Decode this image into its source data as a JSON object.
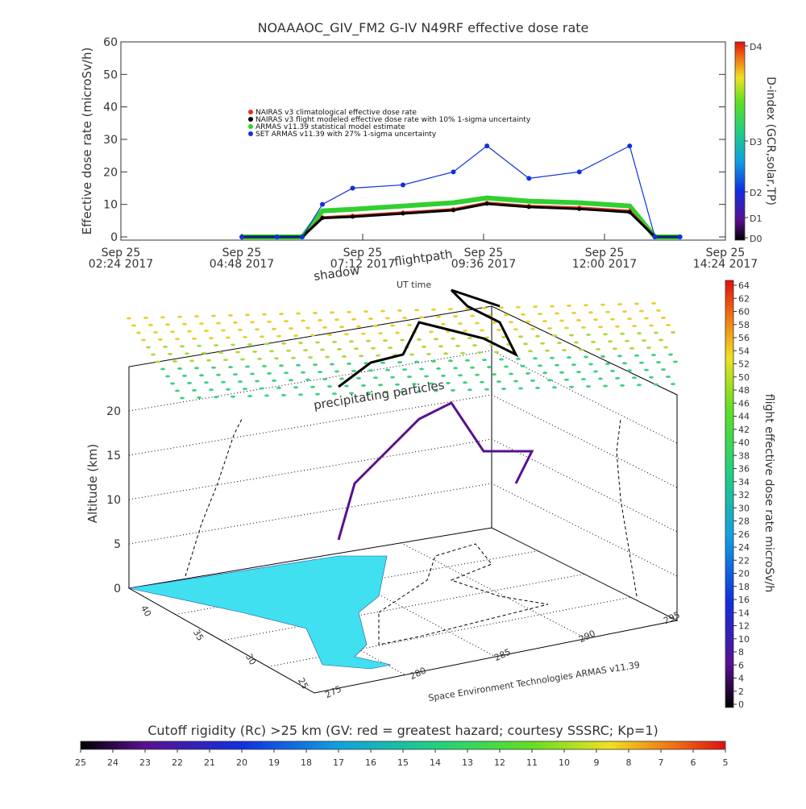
{
  "top_chart": {
    "title": "NOAAAOC_GIV_FM2 G-IV    N49RF  effective dose rate",
    "ylabel": "Effective dose rate (microSv/h)",
    "yticks": [
      "0",
      "10",
      "20",
      "30",
      "40",
      "50",
      "60"
    ],
    "xticks": [
      {
        "date": "Sep 25",
        "time": "02:24 2017"
      },
      {
        "date": "Sep 25",
        "time": "04:48 2017"
      },
      {
        "date": "Sep 25",
        "time": "07:12 2017"
      },
      {
        "date": "Sep 25",
        "time": "09:36 2017"
      },
      {
        "date": "Sep 25",
        "time": "12:00 2017"
      },
      {
        "date": "Sep 25",
        "time": "14:24 2017"
      }
    ],
    "legend": [
      {
        "label": "NAIRAS v3 climatological effective dose rate",
        "color": "#e03020"
      },
      {
        "label": "NAIRAS v3 flight modeled effective dose rate with 10% 1-sigma uncertainty",
        "color": "#000000"
      },
      {
        "label": "ARMAS v11.39 statistical model estimate",
        "color": "#30d030"
      },
      {
        "label": "SET ARMAS v11.39 with 27% 1-sigma uncertainty",
        "color": "#1030e0"
      }
    ],
    "dindex": {
      "label": "D-index (GCR,solar,TP)",
      "ticks": [
        "D4",
        "D3",
        "D2",
        "D1",
        "D0"
      ]
    }
  },
  "chart_data": [
    {
      "type": "line",
      "title": "NOAAAOC_GIV_FM2 G-IV    N49RF  effective dose rate",
      "ylabel": "Effective dose rate (microSv/h)",
      "xlabel": "",
      "ylim": [
        0,
        60
      ],
      "xlim": [
        "2017-09-25 02:24",
        "2017-09-25 14:24"
      ],
      "x": [
        "2017-09-25 04:48",
        "2017-09-25 05:30",
        "2017-09-25 06:00",
        "2017-09-25 06:24",
        "2017-09-25 07:00",
        "2017-09-25 08:00",
        "2017-09-25 09:00",
        "2017-09-25 09:40",
        "2017-09-25 10:30",
        "2017-09-25 11:30",
        "2017-09-25 12:30",
        "2017-09-25 13:00",
        "2017-09-25 13:30"
      ],
      "series": [
        {
          "name": "NAIRAS v3 climatological effective dose rate",
          "color": "#e03020",
          "values": [
            0,
            0,
            0,
            6,
            6.5,
            7.5,
            8.5,
            10.5,
            9.5,
            9,
            8,
            0,
            0
          ]
        },
        {
          "name": "NAIRAS v3 flight modeled effective dose rate with 10% 1-sigma uncertainty",
          "color": "#000000",
          "values": [
            0,
            0,
            0,
            5.8,
            6.2,
            7.2,
            8.2,
            10.2,
            9.2,
            8.6,
            7.6,
            0,
            0
          ]
        },
        {
          "name": "ARMAS v11.39 statistical model estimate",
          "color": "#30d030",
          "values": [
            0,
            0,
            0,
            8,
            8.5,
            9.5,
            10.5,
            12,
            11,
            10.5,
            9.5,
            0,
            0
          ]
        },
        {
          "name": "SET ARMAS v11.39 with 27% 1-sigma uncertainty",
          "color": "#1030e0",
          "values": [
            0,
            0,
            0,
            10,
            15,
            16,
            20,
            28,
            18,
            20,
            28,
            0,
            0
          ]
        }
      ]
    },
    {
      "type": "scatter",
      "title": "",
      "zlabel": "Altitude (km)",
      "zticks": [
        "0",
        "5",
        "10",
        "15",
        "20"
      ],
      "xlabel": "",
      "ylabel": "",
      "lat_ticks": [
        "40",
        "35",
        "30",
        "25"
      ],
      "lon_ticks": [
        "275",
        "280",
        "285",
        "290",
        "295"
      ],
      "annotations": [
        "shadow",
        "flightpath",
        "UT time",
        "precipitating particles"
      ],
      "credit": "Space Environment Technologies ARMAS v11.39"
    }
  ],
  "right_colorbar": {
    "label": "flight effective dose rate microSv/h",
    "ticks": [
      "64",
      "62",
      "60",
      "58",
      "56",
      "54",
      "52",
      "50",
      "48",
      "46",
      "44",
      "42",
      "40",
      "38",
      "36",
      "34",
      "32",
      "30",
      "28",
      "26",
      "24",
      "22",
      "20",
      "18",
      "16",
      "14",
      "12",
      "10",
      "8",
      "6",
      "4",
      "2",
      "0"
    ]
  },
  "bottom_colorbar": {
    "title": "Cutoff rigidity (Rc) >25 km (GV: red = greatest hazard; courtesy SSSRC; Kp=1)",
    "ticks": [
      "25",
      "24",
      "23",
      "22",
      "21",
      "20",
      "19",
      "18",
      "17",
      "16",
      "15",
      "14",
      "13",
      "12",
      "11",
      "10",
      "9",
      "8",
      "7",
      "6",
      "5"
    ]
  }
}
